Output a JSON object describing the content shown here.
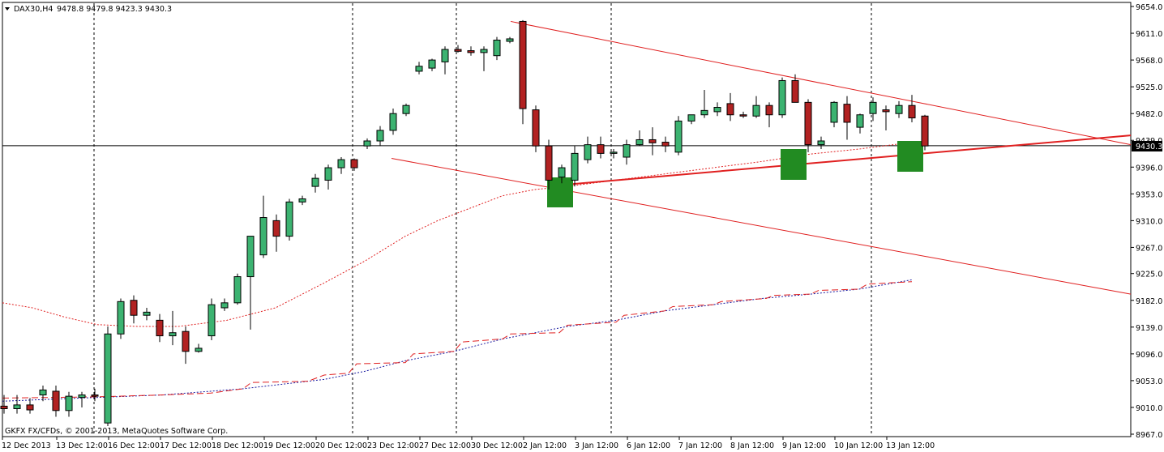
{
  "header": {
    "symbol": "DAX30,H4",
    "ohlc": "9478.8 9479.8 9423.3 9430.3"
  },
  "copyright": "GKFX FX/CFDs, © 2001-2013, MetaQuotes Software Corp.",
  "current_price_label": "9430.3",
  "colors": {
    "bull": "#3cb371",
    "bear": "#b22222",
    "trendline": "#e02020",
    "ma_red": "#e02020",
    "ma_blue": "#1a1aa0",
    "highlight": "#228b22"
  },
  "chart_data": {
    "type": "candlestick",
    "y_axis_ticks": [
      "9654.0",
      "9611.0",
      "9568.0",
      "9525.0",
      "9482.0",
      "9439.0",
      "9396.0",
      "9353.0",
      "9310.0",
      "9267.0",
      "9225.0",
      "9182.0",
      "9139.0",
      "9096.0",
      "9053.0",
      "9010.0",
      "8967.0"
    ],
    "ylim": [
      8967,
      9654
    ],
    "x_axis_ticks": [
      "12 Dec 2013",
      "13 Dec 12:00",
      "16 Dec 12:00",
      "17 Dec 12:00",
      "18 Dec 12:00",
      "19 Dec 12:00",
      "20 Dec 12:00",
      "23 Dec 12:00",
      "27 Dec 12:00",
      "30 Dec 12:00",
      "2 Jan 12:00",
      "3 Jan 12:00",
      "6 Jan 12:00",
      "7 Jan 12:00",
      "8 Jan 12:00",
      "9 Jan 12:00",
      "10 Jan 12:00",
      "13 Jan 12:00"
    ],
    "candles": [
      {
        "o": 9012,
        "h": 9030,
        "l": 9000,
        "c": 9008
      },
      {
        "o": 9008,
        "h": 9030,
        "l": 9000,
        "c": 9014
      },
      {
        "o": 9014,
        "h": 9025,
        "l": 9000,
        "c": 9006
      },
      {
        "o": 9030,
        "h": 9045,
        "l": 9020,
        "c": 9038
      },
      {
        "o": 9036,
        "h": 9045,
        "l": 8995,
        "c": 9005
      },
      {
        "o": 9005,
        "h": 9035,
        "l": 8995,
        "c": 9028
      },
      {
        "o": 9026,
        "h": 9035,
        "l": 9010,
        "c": 9030
      },
      {
        "o": 9030,
        "h": 9040,
        "l": 9020,
        "c": 9028
      },
      {
        "o": 8985,
        "h": 9140,
        "l": 8980,
        "c": 9128
      },
      {
        "o": 9128,
        "h": 9185,
        "l": 9120,
        "c": 9180
      },
      {
        "o": 9182,
        "h": 9190,
        "l": 9145,
        "c": 9158
      },
      {
        "o": 9158,
        "h": 9170,
        "l": 9150,
        "c": 9163
      },
      {
        "o": 9150,
        "h": 9160,
        "l": 9115,
        "c": 9125
      },
      {
        "o": 9125,
        "h": 9165,
        "l": 9110,
        "c": 9130
      },
      {
        "o": 9132,
        "h": 9140,
        "l": 9080,
        "c": 9100
      },
      {
        "o": 9100,
        "h": 9112,
        "l": 9098,
        "c": 9105
      },
      {
        "o": 9125,
        "h": 9185,
        "l": 9118,
        "c": 9175
      },
      {
        "o": 9170,
        "h": 9185,
        "l": 9165,
        "c": 9178
      },
      {
        "o": 9178,
        "h": 9225,
        "l": 9175,
        "c": 9220
      },
      {
        "o": 9220,
        "h": 9285,
        "l": 9135,
        "c": 9285
      },
      {
        "o": 9255,
        "h": 9350,
        "l": 9250,
        "c": 9315
      },
      {
        "o": 9310,
        "h": 9320,
        "l": 9260,
        "c": 9285
      },
      {
        "o": 9285,
        "h": 9345,
        "l": 9278,
        "c": 9340
      },
      {
        "o": 9340,
        "h": 9350,
        "l": 9335,
        "c": 9345
      },
      {
        "o": 9365,
        "h": 9385,
        "l": 9355,
        "c": 9378
      },
      {
        "o": 9375,
        "h": 9400,
        "l": 9360,
        "c": 9395
      },
      {
        "o": 9395,
        "h": 9412,
        "l": 9385,
        "c": 9408
      },
      {
        "o": 9408,
        "h": 9410,
        "l": 9390,
        "c": 9395
      },
      {
        "o": 9430,
        "h": 9442,
        "l": 9425,
        "c": 9438
      },
      {
        "o": 9438,
        "h": 9462,
        "l": 9430,
        "c": 9455
      },
      {
        "o": 9455,
        "h": 9490,
        "l": 9448,
        "c": 9482
      },
      {
        "o": 9482,
        "h": 9498,
        "l": 9478,
        "c": 9495
      },
      {
        "o": 9550,
        "h": 9565,
        "l": 9545,
        "c": 9558
      },
      {
        "o": 9555,
        "h": 9570,
        "l": 9550,
        "c": 9568
      },
      {
        "o": 9565,
        "h": 9590,
        "l": 9545,
        "c": 9585
      },
      {
        "o": 9585,
        "h": 9592,
        "l": 9580,
        "c": 9582
      },
      {
        "o": 9583,
        "h": 9590,
        "l": 9575,
        "c": 9580
      },
      {
        "o": 9580,
        "h": 9590,
        "l": 9550,
        "c": 9585
      },
      {
        "o": 9575,
        "h": 9605,
        "l": 9568,
        "c": 9600
      },
      {
        "o": 9598,
        "h": 9605,
        "l": 9595,
        "c": 9602
      },
      {
        "o": 9630,
        "h": 9632,
        "l": 9465,
        "c": 9490
      },
      {
        "o": 9488,
        "h": 9495,
        "l": 9420,
        "c": 9430
      },
      {
        "o": 9430,
        "h": 9440,
        "l": 9360,
        "c": 9375
      },
      {
        "o": 9380,
        "h": 9400,
        "l": 9370,
        "c": 9395
      },
      {
        "o": 9375,
        "h": 9430,
        "l": 9365,
        "c": 9418
      },
      {
        "o": 9408,
        "h": 9445,
        "l": 9402,
        "c": 9432
      },
      {
        "o": 9432,
        "h": 9445,
        "l": 9410,
        "c": 9418
      },
      {
        "o": 9418,
        "h": 9425,
        "l": 9410,
        "c": 9420
      },
      {
        "o": 9412,
        "h": 9440,
        "l": 9400,
        "c": 9432
      },
      {
        "o": 9432,
        "h": 9455,
        "l": 9430,
        "c": 9440
      },
      {
        "o": 9440,
        "h": 9460,
        "l": 9415,
        "c": 9435
      },
      {
        "o": 9436,
        "h": 9445,
        "l": 9420,
        "c": 9430
      },
      {
        "o": 9420,
        "h": 9478,
        "l": 9415,
        "c": 9470
      },
      {
        "o": 9470,
        "h": 9480,
        "l": 9465,
        "c": 9480
      },
      {
        "o": 9480,
        "h": 9520,
        "l": 9475,
        "c": 9487
      },
      {
        "o": 9485,
        "h": 9500,
        "l": 9478,
        "c": 9492
      },
      {
        "o": 9498,
        "h": 9515,
        "l": 9470,
        "c": 9480
      },
      {
        "o": 9480,
        "h": 9485,
        "l": 9475,
        "c": 9478
      },
      {
        "o": 9478,
        "h": 9510,
        "l": 9475,
        "c": 9495
      },
      {
        "o": 9495,
        "h": 9500,
        "l": 9460,
        "c": 9480
      },
      {
        "o": 9480,
        "h": 9540,
        "l": 9475,
        "c": 9535
      },
      {
        "o": 9535,
        "h": 9545,
        "l": 9500,
        "c": 9500
      },
      {
        "o": 9500,
        "h": 9505,
        "l": 9420,
        "c": 9432
      },
      {
        "o": 9432,
        "h": 9445,
        "l": 9425,
        "c": 9438
      },
      {
        "o": 9468,
        "h": 9502,
        "l": 9460,
        "c": 9500
      },
      {
        "o": 9497,
        "h": 9510,
        "l": 9440,
        "c": 9468
      },
      {
        "o": 9460,
        "h": 9482,
        "l": 9450,
        "c": 9480
      },
      {
        "o": 9482,
        "h": 9508,
        "l": 9470,
        "c": 9500
      },
      {
        "o": 9488,
        "h": 9495,
        "l": 9455,
        "c": 9485
      },
      {
        "o": 9482,
        "h": 9502,
        "l": 9475,
        "c": 9495
      },
      {
        "o": 9495,
        "h": 9512,
        "l": 9468,
        "c": 9475
      },
      {
        "o": 9478,
        "h": 9480,
        "l": 9423,
        "c": 9430
      }
    ],
    "current_price": 9430.3
  }
}
